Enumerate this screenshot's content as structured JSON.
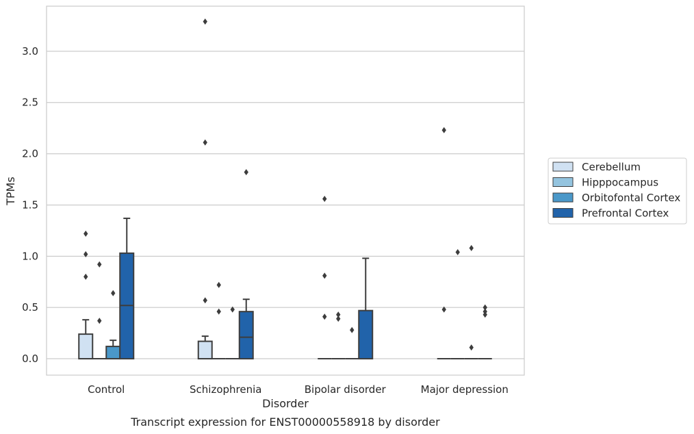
{
  "chart_data": {
    "type": "box",
    "title": "",
    "caption": "Transcript expression for ENST00000558918 by disorder",
    "xlabel": "Disorder",
    "ylabel": "TPMs",
    "ylim": [
      -0.16,
      3.44
    ],
    "yticks": [
      "0.0",
      "0.5",
      "1.0",
      "1.5",
      "2.0",
      "2.5",
      "3.0"
    ],
    "grid": true,
    "legend_position": "right",
    "categories": [
      "Control",
      "Schizophrenia",
      "Bipolar disorder",
      "Major depression"
    ],
    "series": [
      {
        "name": "Cerebellum",
        "color": "#d0e1f2",
        "boxes": [
          {
            "min": 0,
            "q1": 0,
            "median": 0,
            "q3": 0.24,
            "max": 0.38,
            "outliers": [
              0.8,
              1.02,
              1.22
            ]
          },
          {
            "min": 0,
            "q1": 0,
            "median": 0,
            "q3": 0.17,
            "max": 0.22,
            "outliers": [
              0.57,
              2.11,
              3.29
            ]
          },
          {
            "min": 0,
            "q1": 0,
            "median": 0,
            "q3": 0,
            "max": 0,
            "outliers": [
              0.41,
              0.81,
              1.56
            ]
          },
          {
            "min": 0,
            "q1": 0,
            "median": 0,
            "q3": 0,
            "max": 0,
            "outliers": [
              0.48,
              2.23
            ]
          }
        ]
      },
      {
        "name": "Hipppocampus",
        "color": "#94c4df",
        "boxes": [
          {
            "min": 0,
            "q1": 0,
            "median": 0,
            "q3": 0,
            "max": 0,
            "outliers": [
              0.37,
              0.92
            ]
          },
          {
            "min": 0,
            "q1": 0,
            "median": 0,
            "q3": 0,
            "max": 0,
            "outliers": [
              0.46,
              0.72
            ]
          },
          {
            "min": 0,
            "q1": 0,
            "median": 0,
            "q3": 0,
            "max": 0,
            "outliers": [
              0.39,
              0.43
            ]
          },
          {
            "min": 0,
            "q1": 0,
            "median": 0,
            "q3": 0,
            "max": 0,
            "outliers": [
              1.04
            ]
          }
        ]
      },
      {
        "name": "Orbitofontal Cortex",
        "color": "#4a98c9",
        "boxes": [
          {
            "min": 0,
            "q1": 0,
            "median": 0,
            "q3": 0.12,
            "max": 0.18,
            "outliers": [
              0.64
            ]
          },
          {
            "min": 0,
            "q1": 0,
            "median": 0,
            "q3": 0,
            "max": 0,
            "outliers": [
              0.48
            ]
          },
          {
            "min": 0,
            "q1": 0,
            "median": 0,
            "q3": 0,
            "max": 0,
            "outliers": [
              0.28
            ]
          },
          {
            "min": 0,
            "q1": 0,
            "median": 0,
            "q3": 0,
            "max": 0,
            "outliers": [
              0.11,
              1.08
            ]
          }
        ]
      },
      {
        "name": "Prefrontal Cortex",
        "color": "#2163aa",
        "boxes": [
          {
            "min": 0,
            "q1": 0,
            "median": 0.52,
            "q3": 1.03,
            "max": 1.37,
            "outliers": []
          },
          {
            "min": 0,
            "q1": 0,
            "median": 0.21,
            "q3": 0.46,
            "max": 0.58,
            "outliers": [
              1.82
            ]
          },
          {
            "min": 0,
            "q1": 0,
            "median": 0,
            "q3": 0.47,
            "max": 0.98,
            "outliers": []
          },
          {
            "min": 0,
            "q1": 0,
            "median": 0,
            "q3": 0,
            "max": 0,
            "outliers": [
              0.43,
              0.46,
              0.5
            ]
          }
        ]
      }
    ]
  }
}
